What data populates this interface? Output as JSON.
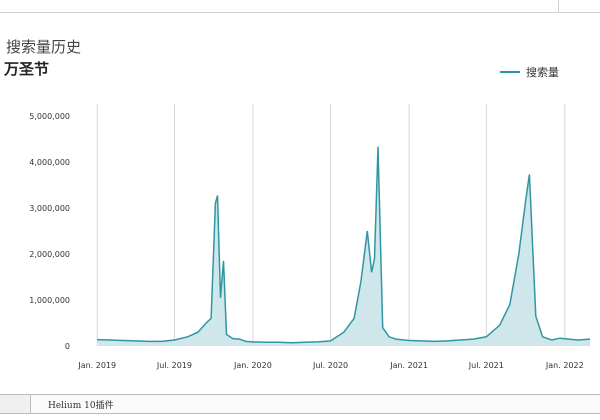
{
  "chart_data": {
    "type": "area",
    "title": "搜索量历史",
    "subtitle": "万圣节",
    "legend": {
      "placement": "top-right",
      "entries": [
        "搜索量"
      ]
    },
    "series": [
      {
        "name": "搜索量",
        "color": "#2e97a3",
        "fill": "#cfe6ea",
        "points": [
          [
            "2019-01-01",
            140000
          ],
          [
            "2019-02-01",
            130000
          ],
          [
            "2019-03-01",
            120000
          ],
          [
            "2019-04-01",
            110000
          ],
          [
            "2019-05-01",
            100000
          ],
          [
            "2019-06-01",
            100000
          ],
          [
            "2019-07-01",
            130000
          ],
          [
            "2019-08-01",
            200000
          ],
          [
            "2019-08-25",
            300000
          ],
          [
            "2019-09-15",
            520000
          ],
          [
            "2019-09-25",
            600000
          ],
          [
            "2019-10-05",
            3100000
          ],
          [
            "2019-10-10",
            3270000
          ],
          [
            "2019-10-17",
            1050000
          ],
          [
            "2019-10-24",
            1850000
          ],
          [
            "2019-10-31",
            250000
          ],
          [
            "2019-11-15",
            160000
          ],
          [
            "2019-12-01",
            150000
          ],
          [
            "2019-12-15",
            100000
          ],
          [
            "2020-01-01",
            90000
          ],
          [
            "2020-02-01",
            80000
          ],
          [
            "2020-03-01",
            80000
          ],
          [
            "2020-04-01",
            70000
          ],
          [
            "2020-05-01",
            80000
          ],
          [
            "2020-06-01",
            90000
          ],
          [
            "2020-07-01",
            110000
          ],
          [
            "2020-08-01",
            300000
          ],
          [
            "2020-08-25",
            600000
          ],
          [
            "2020-09-10",
            1400000
          ],
          [
            "2020-09-25",
            2500000
          ],
          [
            "2020-10-05",
            1600000
          ],
          [
            "2020-10-12",
            1900000
          ],
          [
            "2020-10-20",
            4330000
          ],
          [
            "2020-10-31",
            400000
          ],
          [
            "2020-11-15",
            200000
          ],
          [
            "2020-12-01",
            150000
          ],
          [
            "2021-01-01",
            120000
          ],
          [
            "2021-02-01",
            110000
          ],
          [
            "2021-03-01",
            100000
          ],
          [
            "2021-04-01",
            110000
          ],
          [
            "2021-05-01",
            130000
          ],
          [
            "2021-06-01",
            150000
          ],
          [
            "2021-07-01",
            200000
          ],
          [
            "2021-08-01",
            450000
          ],
          [
            "2021-08-25",
            900000
          ],
          [
            "2021-09-15",
            2000000
          ],
          [
            "2021-10-01",
            3150000
          ],
          [
            "2021-10-10",
            3730000
          ],
          [
            "2021-10-25",
            650000
          ],
          [
            "2021-11-10",
            200000
          ],
          [
            "2021-12-01",
            130000
          ],
          [
            "2021-12-20",
            170000
          ],
          [
            "2022-01-10",
            150000
          ],
          [
            "2022-02-01",
            130000
          ],
          [
            "2022-03-01",
            150000
          ]
        ]
      }
    ],
    "x_ticks": [
      {
        "date": "2019-01-01",
        "label": "Jan. 2019"
      },
      {
        "date": "2019-07-01",
        "label": "Jul. 2019"
      },
      {
        "date": "2020-01-01",
        "label": "Jan. 2020"
      },
      {
        "date": "2020-07-01",
        "label": "Jul. 2020"
      },
      {
        "date": "2021-01-01",
        "label": "Jan. 2021"
      },
      {
        "date": "2021-07-01",
        "label": "Jul. 2021"
      },
      {
        "date": "2022-01-01",
        "label": "Jan. 2022"
      }
    ],
    "y_ticks": [
      {
        "value": 0,
        "label": "0"
      },
      {
        "value": 1000000,
        "label": "1,000,000"
      },
      {
        "value": 2000000,
        "label": "2,000,000"
      },
      {
        "value": 3000000,
        "label": "3,000,000"
      },
      {
        "value": 4000000,
        "label": "4,000,000"
      },
      {
        "value": 5000000,
        "label": "5,000,000"
      }
    ],
    "xlim": [
      "2018-12-01",
      "2022-03-01"
    ],
    "ylim": [
      0,
      5000000
    ],
    "grid": "vertical"
  },
  "footer": {
    "text": "Helium 10插件"
  }
}
